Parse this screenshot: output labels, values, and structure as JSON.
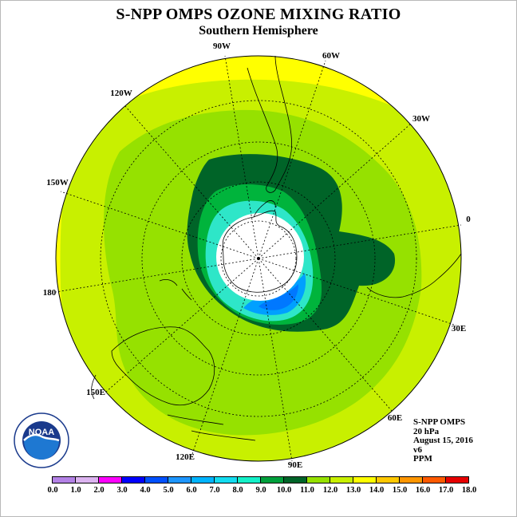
{
  "header": {
    "title": "S-NPP OMPS OZONE MIXING RATIO",
    "subtitle": "Southern Hemisphere"
  },
  "map": {
    "projection": "south-polar-stereographic",
    "longitude_labels": [
      "90W",
      "60W",
      "30W",
      "0",
      "30E",
      "60E",
      "90E",
      "120E",
      "150E",
      "180",
      "150W",
      "120W"
    ],
    "ocean_fill_color": "#ffff00",
    "outer_ring_color": "#c8f000",
    "contour_colors": {
      "c_11_12": "#c8f000",
      "c_10_11": "#96e100",
      "c_9_10": "#006428",
      "c_8_9": "#00b43c",
      "c_7_8": "#2ee6c8",
      "c_5_6": "#00a0ff",
      "c_4_5": "#0078ff",
      "c_below": "#ffffff"
    }
  },
  "info": {
    "product": "S-NPP OMPS",
    "level": "20 hPa",
    "date": "August 15, 2016",
    "version": "v6",
    "units": "PPM"
  },
  "logo": {
    "text": "NOAA",
    "icon": "noaa-logo"
  },
  "colorbar": {
    "labels": [
      "0.0",
      "1.0",
      "2.0",
      "3.0",
      "4.0",
      "5.0",
      "6.0",
      "7.0",
      "8.0",
      "9.0",
      "10.0",
      "11.0",
      "12.0",
      "13.0",
      "14.0",
      "15.0",
      "16.0",
      "17.0",
      "18.0"
    ],
    "colors": [
      "#b482e6",
      "#dcb4f0",
      "#ff00ff",
      "#0000ff",
      "#0050ff",
      "#1e96ff",
      "#00b4ff",
      "#14dcf0",
      "#14f0c8",
      "#00a03c",
      "#006428",
      "#96e100",
      "#c8f000",
      "#ffff00",
      "#ffc800",
      "#ff9600",
      "#ff5a00",
      "#e60000",
      "#8c5a3c"
    ]
  }
}
